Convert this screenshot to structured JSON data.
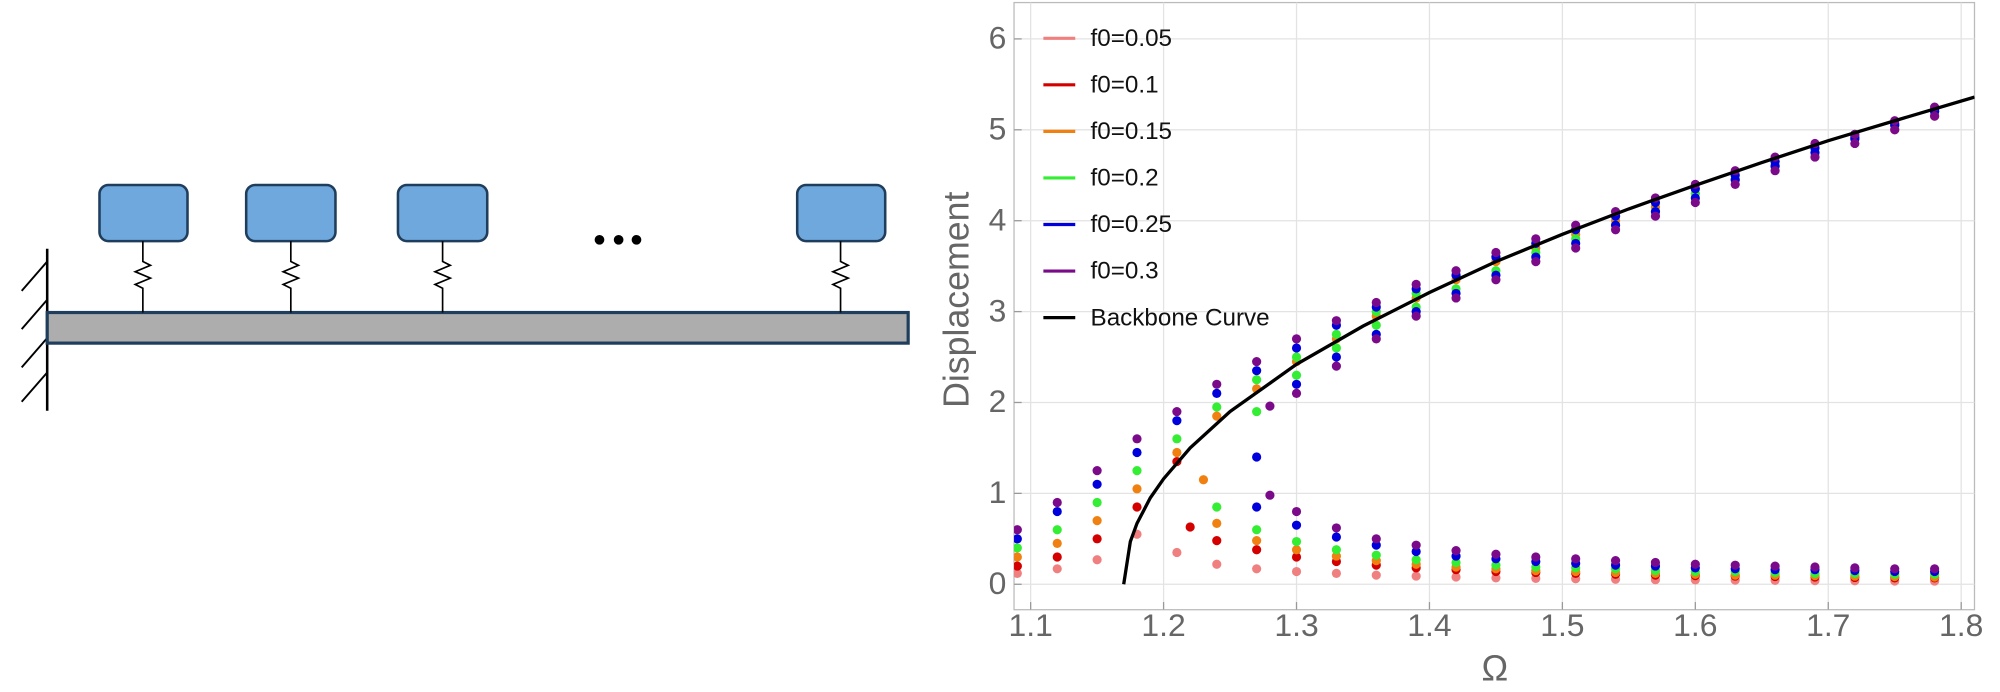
{
  "chart_data": {
    "type": "scatter",
    "x_label": "Ω",
    "y_label": "Displacement",
    "xlim": [
      1.0875,
      1.81
    ],
    "ylim": [
      -0.28,
      6.4
    ],
    "xticks": [
      1.1,
      1.2,
      1.3,
      1.4,
      1.5,
      1.6,
      1.7,
      1.8
    ],
    "yticks": [
      0,
      1,
      2,
      3,
      4,
      5,
      6
    ],
    "grid": true,
    "legend": "upper left",
    "series": [
      {
        "name": "f0=0.05",
        "color": "#f08080",
        "style": "dots",
        "x": [
          1.09,
          1.12,
          1.15,
          1.18,
          1.21,
          1.24,
          1.27,
          1.3,
          1.33,
          1.36,
          1.39,
          1.42,
          1.45,
          1.48,
          1.51,
          1.54,
          1.57,
          1.6,
          1.63,
          1.66,
          1.69,
          1.72,
          1.75,
          1.78
        ],
        "values": [
          0.12,
          0.17,
          0.27,
          0.55,
          0.35,
          0.22,
          0.17,
          0.14,
          0.12,
          0.1,
          0.09,
          0.08,
          0.07,
          0.065,
          0.06,
          0.055,
          0.05,
          0.048,
          0.045,
          0.043,
          0.04,
          0.038,
          0.036,
          0.035
        ]
      },
      {
        "name": "f0=0.1",
        "color": "#d40000",
        "style": "dots",
        "x": [
          1.09,
          1.12,
          1.15,
          1.18,
          1.21,
          1.22,
          1.24,
          1.27,
          1.3,
          1.33,
          1.36,
          1.39,
          1.42,
          1.45,
          1.48,
          1.51,
          1.54,
          1.57,
          1.6,
          1.63,
          1.66,
          1.69,
          1.72,
          1.75,
          1.78
        ],
        "values": [
          0.2,
          0.3,
          0.5,
          0.85,
          1.35,
          0.63,
          0.48,
          0.38,
          0.3,
          0.25,
          0.21,
          0.18,
          0.16,
          0.14,
          0.13,
          0.12,
          0.11,
          0.1,
          0.095,
          0.09,
          0.085,
          0.08,
          0.075,
          0.07,
          0.07
        ]
      },
      {
        "name": "f0=0.15",
        "color": "#f08010",
        "style": "dots",
        "x": [
          1.09,
          1.12,
          1.15,
          1.18,
          1.21,
          1.24,
          1.27,
          1.3,
          1.33,
          1.36,
          1.39,
          1.42,
          1.45,
          1.48,
          1.51,
          1.54,
          1.57,
          1.6,
          1.63,
          1.66,
          1.69,
          1.72,
          1.75,
          1.78,
          1.23,
          1.24,
          1.27,
          1.3,
          1.33,
          1.36,
          1.39,
          1.42,
          1.45,
          1.48,
          1.51,
          1.54,
          1.57,
          1.6,
          1.63,
          1.66,
          1.69,
          1.72,
          1.75,
          1.78
        ],
        "values": [
          0.3,
          0.45,
          0.7,
          1.05,
          1.45,
          1.85,
          2.15,
          2.45,
          2.7,
          2.95,
          3.15,
          3.35,
          3.55,
          3.7,
          3.85,
          4.0,
          4.15,
          4.3,
          4.45,
          4.6,
          4.75,
          4.9,
          5.0,
          5.15,
          1.15,
          0.67,
          0.48,
          0.38,
          0.31,
          0.26,
          0.22,
          0.19,
          0.17,
          0.15,
          0.14,
          0.13,
          0.12,
          0.11,
          0.1,
          0.1,
          0.095,
          0.09,
          0.085,
          0.08
        ]
      },
      {
        "name": "f0=0.2",
        "color": "#33ee33",
        "style": "dots",
        "x": [
          1.09,
          1.12,
          1.15,
          1.18,
          1.21,
          1.24,
          1.27,
          1.3,
          1.33,
          1.36,
          1.39,
          1.42,
          1.45,
          1.48,
          1.51,
          1.54,
          1.57,
          1.6,
          1.63,
          1.66,
          1.69,
          1.72,
          1.75,
          1.78,
          1.27,
          1.3,
          1.33,
          1.36,
          1.39,
          1.42,
          1.45,
          1.48,
          1.51,
          1.54,
          1.57,
          1.6,
          1.63,
          1.66,
          1.69,
          1.72,
          1.75,
          1.78,
          1.24,
          1.27,
          1.3,
          1.33,
          1.36,
          1.39,
          1.42,
          1.45,
          1.48,
          1.51,
          1.54,
          1.57,
          1.6,
          1.63,
          1.66,
          1.69,
          1.72,
          1.75,
          1.78
        ],
        "values": [
          0.4,
          0.6,
          0.9,
          1.25,
          1.6,
          1.95,
          2.25,
          2.5,
          2.75,
          3.0,
          3.2,
          3.4,
          3.6,
          3.75,
          3.9,
          4.05,
          4.2,
          4.35,
          4.5,
          4.65,
          4.8,
          4.95,
          5.05,
          5.2,
          1.9,
          2.3,
          2.6,
          2.85,
          3.05,
          3.25,
          3.45,
          3.65,
          3.8,
          3.95,
          4.1,
          4.3,
          4.45,
          4.6,
          4.75,
          4.9,
          5.05,
          5.2,
          0.85,
          0.6,
          0.47,
          0.38,
          0.32,
          0.27,
          0.24,
          0.21,
          0.19,
          0.18,
          0.17,
          0.15,
          0.14,
          0.14,
          0.13,
          0.12,
          0.12,
          0.11,
          0.11
        ]
      },
      {
        "name": "f0=0.25",
        "color": "#0000dd",
        "style": "dots",
        "x": [
          1.09,
          1.12,
          1.15,
          1.18,
          1.21,
          1.24,
          1.27,
          1.3,
          1.33,
          1.36,
          1.39,
          1.42,
          1.45,
          1.48,
          1.51,
          1.54,
          1.57,
          1.6,
          1.63,
          1.66,
          1.69,
          1.72,
          1.75,
          1.78,
          1.27,
          1.3,
          1.33,
          1.36,
          1.39,
          1.42,
          1.45,
          1.48,
          1.51,
          1.54,
          1.57,
          1.6,
          1.63,
          1.66,
          1.69,
          1.72,
          1.75,
          1.78,
          1.27,
          1.3,
          1.33,
          1.36,
          1.39,
          1.42,
          1.45,
          1.48,
          1.51,
          1.54,
          1.57,
          1.6,
          1.63,
          1.66,
          1.69,
          1.72,
          1.75,
          1.78
        ],
        "values": [
          0.5,
          0.8,
          1.1,
          1.45,
          1.8,
          2.1,
          2.35,
          2.6,
          2.85,
          3.05,
          3.25,
          3.4,
          3.6,
          3.75,
          3.9,
          4.05,
          4.2,
          4.35,
          4.5,
          4.65,
          4.8,
          4.92,
          5.07,
          5.22,
          1.4,
          2.2,
          2.5,
          2.75,
          3.0,
          3.2,
          3.4,
          3.6,
          3.75,
          3.95,
          4.1,
          4.25,
          4.45,
          4.6,
          4.75,
          4.9,
          5.05,
          5.2,
          0.85,
          0.65,
          0.52,
          0.43,
          0.36,
          0.31,
          0.28,
          0.25,
          0.23,
          0.21,
          0.2,
          0.18,
          0.17,
          0.16,
          0.16,
          0.15,
          0.14,
          0.14
        ]
      },
      {
        "name": "f0=0.3",
        "color": "#7a0a8a",
        "style": "dots",
        "x": [
          1.09,
          1.12,
          1.15,
          1.18,
          1.21,
          1.24,
          1.27,
          1.3,
          1.33,
          1.36,
          1.39,
          1.42,
          1.45,
          1.48,
          1.51,
          1.54,
          1.57,
          1.6,
          1.63,
          1.66,
          1.69,
          1.72,
          1.75,
          1.78,
          1.28,
          1.3,
          1.33,
          1.36,
          1.39,
          1.42,
          1.45,
          1.48,
          1.51,
          1.54,
          1.57,
          1.6,
          1.63,
          1.66,
          1.69,
          1.72,
          1.75,
          1.78,
          1.28,
          1.3,
          1.33,
          1.36,
          1.39,
          1.42,
          1.45,
          1.48,
          1.51,
          1.54,
          1.57,
          1.6,
          1.63,
          1.66,
          1.69,
          1.72,
          1.75,
          1.78
        ],
        "values": [
          0.6,
          0.9,
          1.25,
          1.6,
          1.9,
          2.2,
          2.45,
          2.7,
          2.9,
          3.1,
          3.3,
          3.45,
          3.65,
          3.8,
          3.95,
          4.1,
          4.25,
          4.4,
          4.55,
          4.7,
          4.85,
          4.95,
          5.1,
          5.25,
          1.96,
          2.1,
          2.4,
          2.7,
          2.95,
          3.15,
          3.35,
          3.55,
          3.7,
          3.9,
          4.05,
          4.2,
          4.4,
          4.55,
          4.7,
          4.85,
          5.0,
          5.15,
          0.98,
          0.8,
          0.62,
          0.5,
          0.43,
          0.37,
          0.33,
          0.3,
          0.28,
          0.26,
          0.24,
          0.22,
          0.21,
          0.2,
          0.19,
          0.18,
          0.17,
          0.17
        ]
      },
      {
        "name": "Backbone Curve",
        "color": "#000000",
        "style": "line",
        "x": [
          1.17,
          1.175,
          1.18,
          1.19,
          1.2,
          1.22,
          1.25,
          1.3,
          1.35,
          1.4,
          1.45,
          1.5,
          1.55,
          1.6,
          1.65,
          1.7,
          1.75,
          1.81
        ],
        "values": [
          0,
          0.47,
          0.67,
          0.95,
          1.16,
          1.5,
          1.9,
          2.42,
          2.84,
          3.21,
          3.55,
          3.85,
          4.13,
          4.39,
          4.64,
          4.88,
          5.1,
          5.36
        ]
      }
    ]
  }
}
